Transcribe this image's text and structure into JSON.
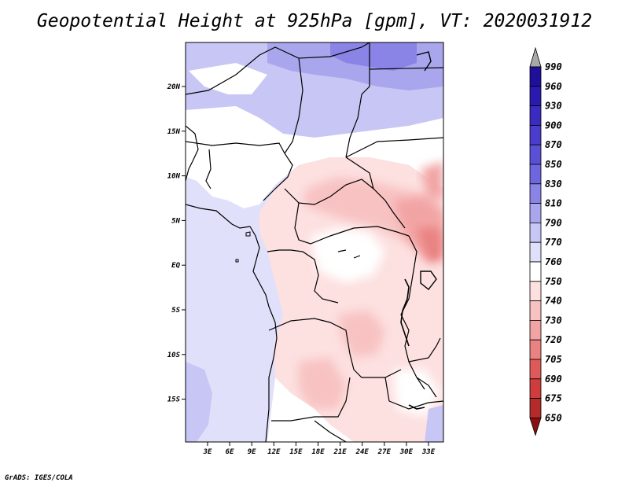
{
  "title": "Geopotential Height at 925hPa [gpm], VT: 2020031912",
  "footer": "GrADS: IGES/COLA",
  "map": {
    "variable": "Geopotential Height",
    "level": "925hPa",
    "units": "gpm",
    "valid_time": "2020031912",
    "lon_labels": [
      "3E",
      "6E",
      "9E",
      "12E",
      "15E",
      "18E",
      "21E",
      "24E",
      "27E",
      "30E",
      "33E"
    ],
    "lat_labels": [
      "20N",
      "15N",
      "10N",
      "5N",
      "EQ",
      "5S",
      "10S",
      "15S"
    ]
  },
  "colorbar": {
    "labels": [
      "990",
      "960",
      "930",
      "900",
      "870",
      "850",
      "830",
      "810",
      "790",
      "770",
      "760",
      "750",
      "740",
      "730",
      "720",
      "705",
      "690",
      "675",
      "650"
    ],
    "colors": [
      "#1f0f9a",
      "#2a1ab0",
      "#3a2cc0",
      "#4a3ccc",
      "#5a50d6",
      "#6e66de",
      "#8a84e6",
      "#a9a6ee",
      "#c8c6f4",
      "#e0e0fb",
      "#ffffff",
      "#fde0e0",
      "#f8c2c2",
      "#f2a4a4",
      "#ea8282",
      "#de5a5a",
      "#cf3c3c",
      "#b52a2a",
      "#9e1a1a"
    ],
    "top_arrow_color": "#a8a8a8",
    "bottom_arrow_color": "#8a1010"
  }
}
